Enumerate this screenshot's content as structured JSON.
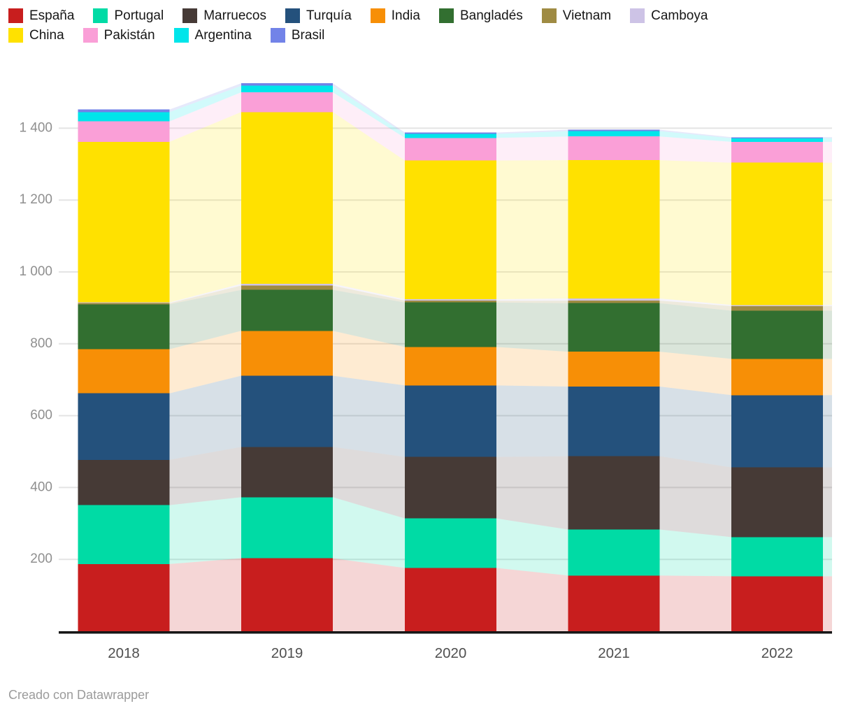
{
  "chart_data": {
    "type": "bar",
    "variant": "stacked-column-with-connected-areas",
    "title": "",
    "xlabel": "",
    "ylabel": "",
    "categories": [
      "2018",
      "2019",
      "2020",
      "2021",
      "2022"
    ],
    "series": [
      {
        "name": "España",
        "color": "#c81e1e",
        "values": [
          187,
          203,
          176,
          155,
          153
        ]
      },
      {
        "name": "Portugal",
        "color": "#00dba5",
        "values": [
          164,
          170,
          138,
          128,
          109
        ]
      },
      {
        "name": "Marruecos",
        "color": "#463a36",
        "values": [
          126,
          140,
          171,
          204,
          194
        ]
      },
      {
        "name": "Turquía",
        "color": "#24517c",
        "values": [
          185,
          198,
          199,
          194,
          201
        ]
      },
      {
        "name": "India",
        "color": "#f78f06",
        "values": [
          123,
          125,
          107,
          97,
          101
        ]
      },
      {
        "name": "Bangladés",
        "color": "#326f30",
        "values": [
          125,
          114,
          124,
          135,
          134
        ]
      },
      {
        "name": "Vietnam",
        "color": "#9f8b43",
        "values": [
          3,
          12,
          5,
          7,
          13
        ]
      },
      {
        "name": "Camboya",
        "color": "#cdc3e6",
        "values": [
          2,
          5,
          4,
          6,
          3
        ]
      },
      {
        "name": "China",
        "color": "#ffe100",
        "values": [
          447,
          478,
          386,
          385,
          396
        ]
      },
      {
        "name": "Pakistán",
        "color": "#fa9fd7",
        "values": [
          57,
          55,
          63,
          66,
          58
        ]
      },
      {
        "name": "Argentina",
        "color": "#00e5ea",
        "values": [
          26,
          18,
          11,
          15,
          10
        ]
      },
      {
        "name": "Brasil",
        "color": "#7283e8",
        "values": [
          7,
          7,
          4,
          4,
          3
        ]
      }
    ],
    "totals": [
      1452,
      1525,
      1388,
      1396,
      1375
    ],
    "ylim": [
      0,
      1550
    ],
    "y_ticks": [
      {
        "value": 200,
        "label": "200"
      },
      {
        "value": 400,
        "label": "400"
      },
      {
        "value": 600,
        "label": "600"
      },
      {
        "value": 800,
        "label": "800"
      },
      {
        "value": 1000,
        "label": "1 000"
      },
      {
        "value": 1200,
        "label": "1 200"
      },
      {
        "value": 1400,
        "label": "1 400"
      }
    ],
    "grid": true,
    "legend_position": "top",
    "connector_area_opacity": 0.18
  },
  "footer": {
    "credit": "Creado con Datawrapper"
  },
  "colors": {
    "background": "#ffffff",
    "gridline": "#e4e4e4",
    "axis_line": "#161616",
    "y_tick_label": "#8f8f8f",
    "x_tick_label": "#4f4f4f",
    "footer_text": "#9b9b9b"
  }
}
